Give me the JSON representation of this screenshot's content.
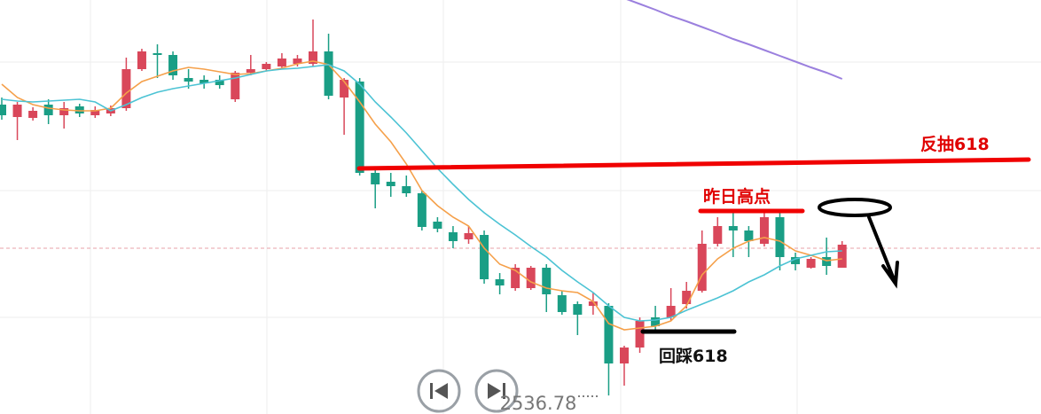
{
  "chart_data": {
    "type": "candlestick",
    "open": [
      2602.4,
      2599.6,
      2599.4,
      2602.4,
      2600,
      2602,
      2600,
      2600.4,
      2601.6,
      2610.4,
      2614,
      2613.6,
      2608.4,
      2608,
      2608,
      2603.6,
      2609.6,
      2610.4,
      2611,
      2611.6,
      2611.6,
      2614.4,
      2604,
      2607.6,
      2587,
      2585,
      2584,
      2582.4,
      2576,
      2573.6,
      2572,
      2573,
      2563,
      2561,
      2561,
      2565.6,
      2559.4,
      2557.4,
      2557,
      2557,
      2544,
      2547.6,
      2554.4,
      2554.4,
      2557.4,
      2560.4,
      2571,
      2575,
      2574,
      2571,
      2577,
      2568,
      2565.6,
      2568,
      2565.6
    ],
    "high": [
      2604,
      2603,
      2601.8,
      2603.6,
      2603,
      2602.6,
      2602,
      2602.2,
      2613,
      2615,
      2616,
      2614.4,
      2610.4,
      2609,
      2609,
      2610,
      2613.6,
      2612,
      2614,
      2613.6,
      2621.6,
      2618.4,
      2608.4,
      2608.4,
      2588,
      2587,
      2586.4,
      2583,
      2577,
      2575,
      2575,
      2574,
      2564.4,
      2566.4,
      2566,
      2566.4,
      2560.4,
      2558,
      2560,
      2557.6,
      2548,
      2554.4,
      2557,
      2561,
      2562.4,
      2574,
      2577,
      2578,
      2575,
      2578,
      2578,
      2569,
      2568,
      2572.4,
      2571.6
    ],
    "low": [
      2599,
      2594.4,
      2598.8,
      2598,
      2597,
      2599.6,
      2599.4,
      2599.8,
      2601,
      2610,
      2608.4,
      2608,
      2606,
      2606,
      2606,
      2603,
      2609,
      2610,
      2610.4,
      2611,
      2611,
      2603.6,
      2595.6,
      2586.4,
      2579,
      2581.6,
      2581.6,
      2574,
      2573.6,
      2570,
      2571,
      2562,
      2559.6,
      2560.4,
      2560.6,
      2555.6,
      2555,
      2550.4,
      2555,
      2536.78,
      2539,
      2546.4,
      2551.6,
      2553.6,
      2556.4,
      2560,
      2570.4,
      2568,
      2568,
      2570.4,
      2565,
      2565,
      2565.4,
      2564,
      2565.6
    ],
    "close": [
      2600,
      2602.4,
      2601,
      2600,
      2601.6,
      2600.4,
      2601.2,
      2601.6,
      2610.4,
      2614.4,
      2613.6,
      2609,
      2607.6,
      2607.2,
      2606.8,
      2609.6,
      2610.4,
      2611.6,
      2612.8,
      2612.8,
      2614.4,
      2604.4,
      2608,
      2587,
      2584.4,
      2584,
      2582.4,
      2574.8,
      2574.4,
      2571.6,
      2573.4,
      2563,
      2561.6,
      2565.6,
      2565.6,
      2559.6,
      2555.6,
      2555,
      2558,
      2544,
      2547.6,
      2553.6,
      2552.4,
      2557,
      2560.4,
      2571,
      2575,
      2574,
      2571.6,
      2577,
      2568,
      2566.4,
      2567.6,
      2566,
      2570.8
    ],
    "up_color": "#d9475a",
    "down_color": "#1a9e85",
    "series": [
      {
        "color": "#f5a04a",
        "values": [
          2607,
          2604,
          2602.4,
          2601.6,
          2601.2,
          2601,
          2601,
          2601.6,
          2605,
          2607.6,
          2608.8,
          2610,
          2610.8,
          2610.4,
          2609.8,
          2609.2,
          2609.4,
          2610,
          2610.6,
          2611.6,
          2612.2,
          2611.4,
          2607.6,
          2603,
          2598,
          2594,
          2589,
          2583,
          2579.6,
          2577,
          2575,
          2570,
          2566.4,
          2565,
          2562.4,
          2561,
          2560.4,
          2560,
          2558,
          2553,
          2551.6,
          2552,
          2552.4,
          2553.6,
          2557,
          2564,
          2567.6,
          2570,
          2571.6,
          2572.4,
          2571.6,
          2569.4,
          2568.4,
          2567.2,
          2567.6
        ]
      },
      {
        "color": "#4cc3d4",
        "values": [
          2603.6,
          2603.2,
          2603,
          2603.2,
          2603.4,
          2603.6,
          2603,
          2601,
          2602.4,
          2604,
          2605.2,
          2606,
          2606.6,
          2607.2,
          2607.8,
          2608.4,
          2609.2,
          2610,
          2610.4,
          2610.6,
          2611,
          2611.4,
          2610,
          2607,
          2603,
          2599.6,
          2596,
          2592,
          2588,
          2584.4,
          2581,
          2578,
          2575.4,
          2573,
          2570.4,
          2568,
          2565,
          2562.4,
          2560,
          2557,
          2554.4,
          2553.6,
          2553.8,
          2554.4,
          2556,
          2557.4,
          2558.8,
          2560.4,
          2562.4,
          2564,
          2566,
          2567.6,
          2568.4,
          2569.2,
          2569.4
        ]
      },
      {
        "color": "#9b80de",
        "values": [
          null,
          null,
          null,
          null,
          null,
          null,
          null,
          null,
          null,
          null,
          null,
          null,
          null,
          null,
          null,
          null,
          null,
          null,
          null,
          null,
          null,
          null,
          null,
          null,
          null,
          null,
          null,
          null,
          null,
          null,
          null,
          null,
          null,
          null,
          null,
          null,
          null,
          null,
          null,
          null,
          2626.4,
          2625.1,
          2623.8,
          2622.4,
          2621.2,
          2619.9,
          2618.6,
          2617.2,
          2616,
          2614.7,
          2613.4,
          2612.1,
          2610.8,
          2609.6,
          2608.2
        ]
      }
    ],
    "ylim": [
      2532.6,
      2626
    ],
    "price_line": 2570,
    "annotations": [
      "反抽618",
      "昨日高点",
      "回踩618"
    ]
  }
}
